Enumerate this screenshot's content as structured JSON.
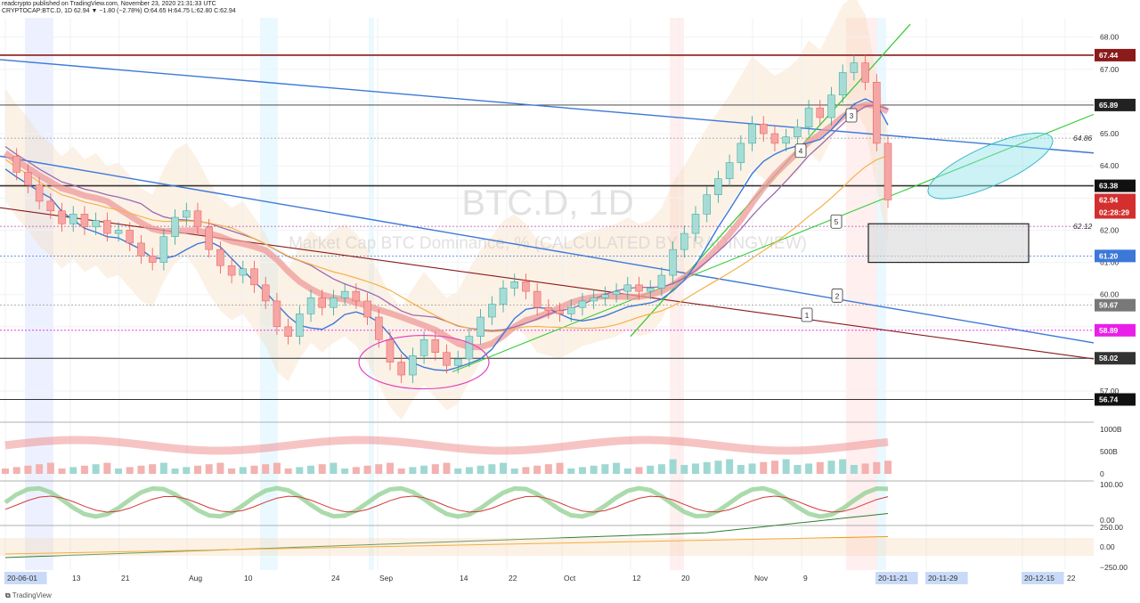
{
  "header": {
    "line1": "readcrypto published on TradingView.com, November 23, 2020 21:31:33 UTC",
    "line2": "CRYPTOCAP:BTC.D, 1D 62.94 ▼ −1.80 (−2.78%) O:64.65 H:64.75 L:62.80 C:62.94"
  },
  "footer": {
    "brand": "TradingView"
  },
  "watermark": {
    "symbol": "BTC.D, 1D",
    "description": "Market Cap BTC Dominance, % (CALCULATED BY TRADINGVIEW)"
  },
  "colors": {
    "up": "#26a69a",
    "down": "#ef5350",
    "resistance": "#8b1a1a",
    "trend_blue": "#3c78d8",
    "trend_green": "#33cc33",
    "circle": "#e040c0",
    "badge_red": "#d32f2f",
    "badge_magenta": "#e91ee9",
    "badge_gray": "#787878"
  },
  "chart_data": {
    "type": "line",
    "title": "BTC.D, 1D",
    "xlabel": "",
    "ylabel": "",
    "ylim": [
      56.2,
      68.6
    ],
    "grid": true,
    "x_ticks": [
      "20-06-01",
      "13",
      "21",
      "Aug",
      "10",
      "24",
      "Sep",
      "14",
      "22",
      "Oct",
      "12",
      "20",
      "Nov",
      "9",
      "20-11-21",
      "20-11-29",
      "20-12-15",
      "22"
    ],
    "y_ticks": [
      "57.00",
      "58.00",
      "59.00",
      "60.00",
      "61.00",
      "62.00",
      "63.00",
      "64.00",
      "65.00",
      "66.00",
      "67.00",
      "68.00"
    ],
    "price_badges": [
      {
        "label": "67.44",
        "value": 67.44,
        "color": "#8b1a1a"
      },
      {
        "label": "65.89",
        "value": 65.89,
        "color": "#222222"
      },
      {
        "label": "63.38",
        "value": 63.38,
        "color": "#111111"
      },
      {
        "label": "62.94",
        "value": 62.94,
        "color": "#d32f2f"
      },
      {
        "label": "02:28:29",
        "value": 62.6,
        "color": "#d32f2f"
      },
      {
        "label": "61.20",
        "value": 61.2,
        "color": "#3c78d8"
      },
      {
        "label": "59.67",
        "value": 59.67,
        "color": "#787878"
      },
      {
        "label": "58.89",
        "value": 58.89,
        "color": "#e91ee9"
      },
      {
        "label": "58.02",
        "value": 58.02,
        "color": "#333333"
      },
      {
        "label": "56.74",
        "value": 56.74,
        "color": "#111111"
      }
    ],
    "axis_labels": [
      {
        "label": "64.86",
        "value": 64.86
      },
      {
        "label": "62.12",
        "value": 62.12
      }
    ],
    "horizontal_levels": [
      67.44,
      65.89,
      63.38,
      58.02,
      56.74
    ],
    "series": [
      {
        "name": "BTC.D",
        "values": [
          64.3,
          63.8,
          63.4,
          62.9,
          62.6,
          62.2,
          62.5,
          62.1,
          62.3,
          61.9,
          62.0,
          61.6,
          61.2,
          61.0,
          61.8,
          62.4,
          62.6,
          62.1,
          61.4,
          60.9,
          60.6,
          60.8,
          60.3,
          59.8,
          59.0,
          58.7,
          59.4,
          59.9,
          59.6,
          59.9,
          60.1,
          59.8,
          59.3,
          58.6,
          57.9,
          57.5,
          58.1,
          58.6,
          58.2,
          57.8,
          58.0,
          58.7,
          59.3,
          59.7,
          60.2,
          60.4,
          60.1,
          59.6,
          59.5,
          59.4,
          59.6,
          59.8,
          59.9,
          60.0,
          60.1,
          60.3,
          60.1,
          60.2,
          60.6,
          61.4,
          61.9,
          62.5,
          63.1,
          63.6,
          64.1,
          64.7,
          65.3,
          65.0,
          64.7,
          64.9,
          65.2,
          65.8,
          65.5,
          66.2,
          66.9,
          67.2,
          66.6,
          64.7,
          62.94
        ]
      }
    ],
    "annotations": [
      {
        "label": "1",
        "value": 59.3
      },
      {
        "label": "2",
        "value": 59.9
      },
      {
        "label": "3",
        "value": 65.5
      },
      {
        "label": "4",
        "value": 64.4
      },
      {
        "label": "5",
        "value": 62.2
      }
    ],
    "indicators": [
      {
        "name": "volume",
        "y_ticks": [
          "1000B",
          "500B",
          "0"
        ]
      },
      {
        "name": "oscillator",
        "y_ticks": [
          "100.00",
          "0.00"
        ]
      },
      {
        "name": "momentum",
        "y_ticks": [
          "250.00",
          "0.00",
          "−250.00"
        ]
      }
    ]
  }
}
